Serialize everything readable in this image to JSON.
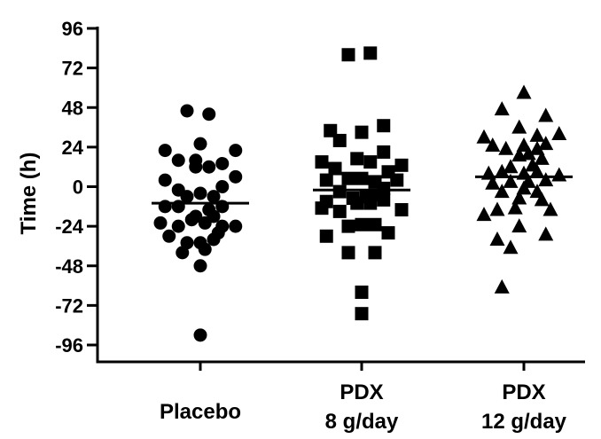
{
  "chart_data": {
    "type": "scatter",
    "ylabel": "Time (h)",
    "xlabel": "",
    "ylim": [
      -108,
      96
    ],
    "yticks": [
      96,
      72,
      48,
      24,
      0,
      -24,
      -48,
      -72,
      -96
    ],
    "yticks_labels": [
      "96",
      "72",
      "48",
      "24",
      "0",
      "-24",
      "-48",
      "-72",
      "-96"
    ],
    "categories": [
      {
        "lines": [
          "Placebo"
        ]
      },
      {
        "lines": [
          "PDX",
          "8 g/day"
        ]
      },
      {
        "lines": [
          "PDX",
          "12 g/day"
        ]
      }
    ],
    "series": [
      {
        "marker": "circle",
        "median": -10,
        "points": [
          {
            "dx": -0.2,
            "y": 46
          },
          {
            "dx": 0.13,
            "y": 44
          },
          {
            "dx": 0.0,
            "y": 26
          },
          {
            "dx": -0.53,
            "y": 22
          },
          {
            "dx": 0.53,
            "y": 22
          },
          {
            "dx": -0.33,
            "y": 16
          },
          {
            "dx": -0.07,
            "y": 16
          },
          {
            "dx": 0.33,
            "y": 14
          },
          {
            "dx": -0.07,
            "y": 12
          },
          {
            "dx": 0.13,
            "y": 12
          },
          {
            "dx": -0.53,
            "y": 4
          },
          {
            "dx": 0.53,
            "y": 6
          },
          {
            "dx": 0.33,
            "y": 0
          },
          {
            "dx": -0.33,
            "y": -2
          },
          {
            "dx": -0.2,
            "y": -6
          },
          {
            "dx": 0.0,
            "y": -4
          },
          {
            "dx": 0.2,
            "y": -6
          },
          {
            "dx": -0.53,
            "y": -12
          },
          {
            "dx": -0.33,
            "y": -12
          },
          {
            "dx": 0.13,
            "y": -14
          },
          {
            "dx": 0.33,
            "y": -12
          },
          {
            "dx": -0.07,
            "y": -18
          },
          {
            "dx": 0.2,
            "y": -18
          },
          {
            "dx": -0.6,
            "y": -22
          },
          {
            "dx": -0.33,
            "y": -24
          },
          {
            "dx": -0.13,
            "y": -20
          },
          {
            "dx": 0.07,
            "y": -22
          },
          {
            "dx": 0.33,
            "y": -24
          },
          {
            "dx": 0.53,
            "y": -24
          },
          {
            "dx": 0.27,
            "y": -28
          },
          {
            "dx": -0.47,
            "y": -30
          },
          {
            "dx": -0.2,
            "y": -34
          },
          {
            "dx": 0.0,
            "y": -34
          },
          {
            "dx": 0.2,
            "y": -32
          },
          {
            "dx": -0.27,
            "y": -40
          },
          {
            "dx": 0.07,
            "y": -38
          },
          {
            "dx": 0.0,
            "y": -48
          },
          {
            "dx": 0.0,
            "y": -90
          }
        ]
      },
      {
        "marker": "square",
        "median": -2,
        "points": [
          {
            "dx": -0.2,
            "y": 80
          },
          {
            "dx": 0.13,
            "y": 81
          },
          {
            "dx": 0.33,
            "y": 37
          },
          {
            "dx": -0.47,
            "y": 34
          },
          {
            "dx": 0.0,
            "y": 33
          },
          {
            "dx": -0.33,
            "y": 28
          },
          {
            "dx": 0.33,
            "y": 21
          },
          {
            "dx": -0.6,
            "y": 15
          },
          {
            "dx": -0.07,
            "y": 17
          },
          {
            "dx": 0.13,
            "y": 15
          },
          {
            "dx": 0.6,
            "y": 13
          },
          {
            "dx": -0.4,
            "y": 11
          },
          {
            "dx": 0.4,
            "y": 9
          },
          {
            "dx": -0.53,
            "y": 4
          },
          {
            "dx": -0.2,
            "y": 5
          },
          {
            "dx": 0.0,
            "y": 5
          },
          {
            "dx": 0.2,
            "y": 3
          },
          {
            "dx": 0.53,
            "y": 4
          },
          {
            "dx": -0.33,
            "y": -3
          },
          {
            "dx": 0.33,
            "y": -1
          },
          {
            "dx": -0.13,
            "y": -7
          },
          {
            "dx": 0.07,
            "y": -6
          },
          {
            "dx": 0.2,
            "y": -5
          },
          {
            "dx": -0.53,
            "y": -9
          },
          {
            "dx": -0.07,
            "y": -10
          },
          {
            "dx": 0.13,
            "y": -10
          },
          {
            "dx": 0.33,
            "y": -8
          },
          {
            "dx": -0.6,
            "y": -13
          },
          {
            "dx": -0.33,
            "y": -15
          },
          {
            "dx": 0.6,
            "y": -14
          },
          {
            "dx": -0.2,
            "y": -24
          },
          {
            "dx": 0.0,
            "y": -23
          },
          {
            "dx": 0.2,
            "y": -23
          },
          {
            "dx": 0.4,
            "y": -28
          },
          {
            "dx": -0.53,
            "y": -30
          },
          {
            "dx": -0.2,
            "y": -40
          },
          {
            "dx": 0.2,
            "y": -40
          },
          {
            "dx": 0.0,
            "y": -64
          },
          {
            "dx": 0.0,
            "y": -77
          }
        ]
      },
      {
        "marker": "triangle",
        "median": 6,
        "points": [
          {
            "dx": 0.0,
            "y": 57
          },
          {
            "dx": -0.33,
            "y": 47
          },
          {
            "dx": 0.33,
            "y": 43
          },
          {
            "dx": -0.07,
            "y": 36
          },
          {
            "dx": 0.53,
            "y": 32
          },
          {
            "dx": -0.6,
            "y": 30
          },
          {
            "dx": 0.2,
            "y": 31
          },
          {
            "dx": -0.47,
            "y": 25
          },
          {
            "dx": -0.27,
            "y": 23
          },
          {
            "dx": 0.0,
            "y": 25
          },
          {
            "dx": 0.2,
            "y": 23
          },
          {
            "dx": 0.33,
            "y": 26
          },
          {
            "dx": -0.07,
            "y": 19
          },
          {
            "dx": 0.07,
            "y": 20
          },
          {
            "dx": 0.27,
            "y": 17
          },
          {
            "dx": -0.2,
            "y": 12
          },
          {
            "dx": 0.13,
            "y": 13
          },
          {
            "dx": -0.53,
            "y": 8
          },
          {
            "dx": -0.33,
            "y": 9
          },
          {
            "dx": 0.0,
            "y": 8
          },
          {
            "dx": 0.2,
            "y": 9
          },
          {
            "dx": 0.53,
            "y": 7
          },
          {
            "dx": -0.47,
            "y": 2
          },
          {
            "dx": -0.2,
            "y": 3
          },
          {
            "dx": 0.07,
            "y": 3
          },
          {
            "dx": 0.33,
            "y": 4
          },
          {
            "dx": -0.33,
            "y": -3
          },
          {
            "dx": 0.0,
            "y": -1
          },
          {
            "dx": 0.2,
            "y": -3
          },
          {
            "dx": -0.07,
            "y": -7
          },
          {
            "dx": 0.27,
            "y": -8
          },
          {
            "dx": -0.4,
            "y": -14
          },
          {
            "dx": -0.13,
            "y": -13
          },
          {
            "dx": 0.4,
            "y": -14
          },
          {
            "dx": -0.6,
            "y": -17
          },
          {
            "dx": -0.07,
            "y": -24
          },
          {
            "dx": 0.33,
            "y": -29
          },
          {
            "dx": -0.4,
            "y": -32
          },
          {
            "dx": -0.2,
            "y": -37
          },
          {
            "dx": -0.33,
            "y": -61
          }
        ]
      }
    ]
  }
}
